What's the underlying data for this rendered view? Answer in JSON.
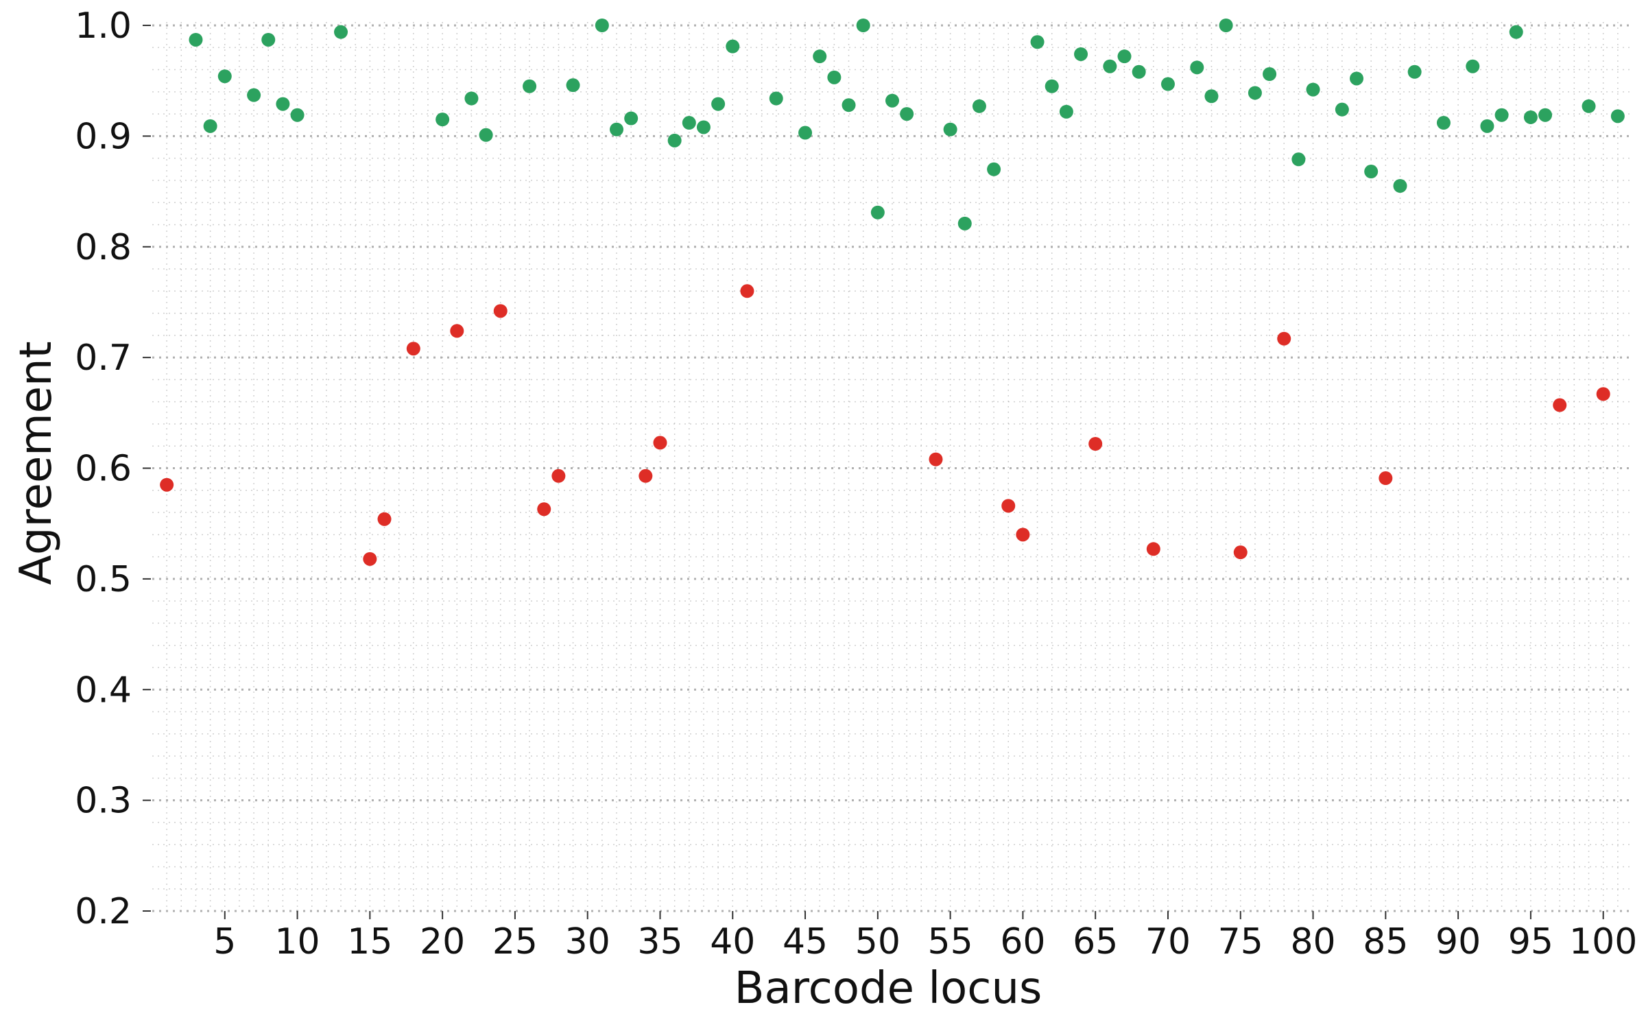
{
  "chart_data": {
    "type": "scatter",
    "xlabel": "Barcode locus",
    "ylabel": "Agreement",
    "xlim": [
      0,
      102
    ],
    "ylim": [
      0.2,
      1.0
    ],
    "x_ticks": [
      "5",
      "10",
      "15",
      "20",
      "25",
      "30",
      "35",
      "40",
      "45",
      "50",
      "55",
      "60",
      "65",
      "70",
      "75",
      "80",
      "85",
      "90",
      "95",
      "100"
    ],
    "y_ticks": [
      "0.2",
      "0.3",
      "0.4",
      "0.5",
      "0.6",
      "0.7",
      "0.8",
      "0.9",
      "1.0"
    ],
    "grid": true,
    "legend": "none",
    "colors": {
      "high": "#2ca25f",
      "low": "#de2d26",
      "grid": "#b0b0b0"
    },
    "series": [
      {
        "color": "#2ca25f",
        "points": [
          [
            3,
            0.987
          ],
          [
            4,
            0.909
          ],
          [
            5,
            0.954
          ],
          [
            7,
            0.937
          ],
          [
            8,
            0.987
          ],
          [
            9,
            0.929
          ],
          [
            10,
            0.919
          ],
          [
            13,
            0.994
          ],
          [
            20,
            0.915
          ],
          [
            22,
            0.934
          ],
          [
            23,
            0.901
          ],
          [
            26,
            0.945
          ],
          [
            29,
            0.946
          ],
          [
            31,
            1.0
          ],
          [
            32,
            0.906
          ],
          [
            33,
            0.916
          ],
          [
            36,
            0.896
          ],
          [
            37,
            0.912
          ],
          [
            38,
            0.908
          ],
          [
            39,
            0.929
          ],
          [
            40,
            0.981
          ],
          [
            43,
            0.934
          ],
          [
            45,
            0.903
          ],
          [
            46,
            0.972
          ],
          [
            47,
            0.953
          ],
          [
            48,
            0.928
          ],
          [
            49,
            1.0
          ],
          [
            50,
            0.831
          ],
          [
            51,
            0.932
          ],
          [
            52,
            0.92
          ],
          [
            55,
            0.906
          ],
          [
            56,
            0.821
          ],
          [
            57,
            0.927
          ],
          [
            58,
            0.87
          ],
          [
            61,
            0.985
          ],
          [
            62,
            0.945
          ],
          [
            63,
            0.922
          ],
          [
            64,
            0.974
          ],
          [
            66,
            0.963
          ],
          [
            67,
            0.972
          ],
          [
            68,
            0.958
          ],
          [
            70,
            0.947
          ],
          [
            72,
            0.962
          ],
          [
            73,
            0.936
          ],
          [
            74,
            1.0
          ],
          [
            76,
            0.939
          ],
          [
            77,
            0.956
          ],
          [
            79,
            0.879
          ],
          [
            80,
            0.942
          ],
          [
            82,
            0.924
          ],
          [
            83,
            0.952
          ],
          [
            84,
            0.868
          ],
          [
            86,
            0.855
          ],
          [
            87,
            0.958
          ],
          [
            89,
            0.912
          ],
          [
            91,
            0.963
          ],
          [
            92,
            0.909
          ],
          [
            93,
            0.919
          ],
          [
            94,
            0.994
          ],
          [
            95,
            0.917
          ],
          [
            96,
            0.919
          ],
          [
            99,
            0.927
          ],
          [
            101,
            0.918
          ]
        ]
      },
      {
        "color": "#de2d26",
        "points": [
          [
            1,
            0.585
          ],
          [
            15,
            0.518
          ],
          [
            16,
            0.554
          ],
          [
            18,
            0.708
          ],
          [
            21,
            0.724
          ],
          [
            24,
            0.742
          ],
          [
            27,
            0.563
          ],
          [
            28,
            0.593
          ],
          [
            34,
            0.593
          ],
          [
            35,
            0.623
          ],
          [
            41,
            0.76
          ],
          [
            54,
            0.608
          ],
          [
            59,
            0.566
          ],
          [
            60,
            0.54
          ],
          [
            65,
            0.622
          ],
          [
            69,
            0.527
          ],
          [
            75,
            0.524
          ],
          [
            78,
            0.717
          ],
          [
            85,
            0.591
          ],
          [
            97,
            0.657
          ],
          [
            100,
            0.667
          ]
        ]
      }
    ]
  }
}
